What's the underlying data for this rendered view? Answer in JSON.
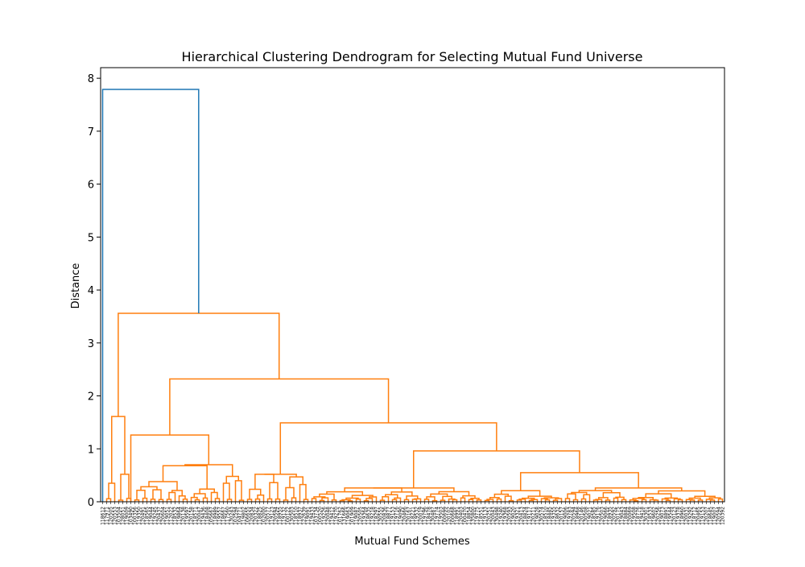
{
  "chart_data": {
    "type": "dendrogram",
    "title": "Hierarchical Clustering Dendrogram for Selecting Mutual Fund Universe",
    "xlabel": "Mutual Fund Schemes",
    "ylabel": "Distance",
    "ylim": [
      0,
      8.2
    ],
    "yticks": [
      0,
      1,
      2,
      3,
      4,
      5,
      6,
      7,
      8
    ],
    "grid": false,
    "leaf_count": 155,
    "colors": {
      "top_link": "#1f77b4",
      "cluster": "#ff7f0e"
    },
    "leaf_labels": [
      "118612",
      "117971",
      "120505",
      "120553",
      "103504",
      "128051",
      "119009",
      "103490",
      "100356",
      "119350",
      "120491",
      "118565",
      "119044",
      "119245",
      "120437",
      "120604",
      "119051",
      "112022",
      "118532",
      "119864",
      "120138",
      "119597",
      "120158",
      "118571",
      "120047",
      "119436",
      "118408",
      "105667",
      "118989",
      "119557",
      "118667",
      "117560",
      "130243",
      "102594",
      "104771",
      "119802",
      "106655",
      "120834",
      "120322",
      "118825",
      "102000",
      "120577",
      "119123",
      "120594",
      "118955",
      "119132",
      "100122",
      "130503",
      "118510",
      "118937",
      "122639",
      "119091",
      "119433",
      "103734",
      "100520",
      "119226",
      "120048",
      "119412",
      "119270",
      "101762",
      "131666",
      "119063",
      "101909",
      "119087",
      "120505",
      "119364",
      "118635",
      "119218",
      "118297",
      "130555",
      "120836",
      "118877",
      "119153",
      "119716",
      "119090",
      "120466",
      "120167",
      "118221",
      "119532",
      "120019",
      "119796",
      "118478",
      "130487",
      "119774",
      "119503",
      "100699",
      "120102",
      "100668",
      "118991",
      "120403",
      "100470",
      "118854",
      "135800",
      "119775",
      "118551",
      "119133",
      "120251",
      "120043",
      "130498",
      "119240",
      "119368",
      "120593",
      "119020",
      "119321",
      "120413",
      "118824",
      "119117",
      "120211",
      "119028",
      "130574",
      "118510",
      "118445",
      "119355",
      "118632",
      "120157",
      "119006",
      "119783",
      "120594",
      "118968",
      "120146",
      "130508",
      "119021",
      "118585",
      "119176",
      "120503",
      "119066",
      "118935",
      "120592",
      "120175",
      "119043",
      "118884",
      "120069",
      "119508",
      "118776",
      "119418",
      "130301",
      "118533",
      "119602",
      "120256",
      "119073",
      "118891",
      "119544",
      "120123",
      "119378",
      "118960",
      "120031",
      "119292",
      "118712",
      "120465",
      "119153",
      "120207",
      "118645",
      "119007",
      "120594",
      "120392"
    ]
  }
}
